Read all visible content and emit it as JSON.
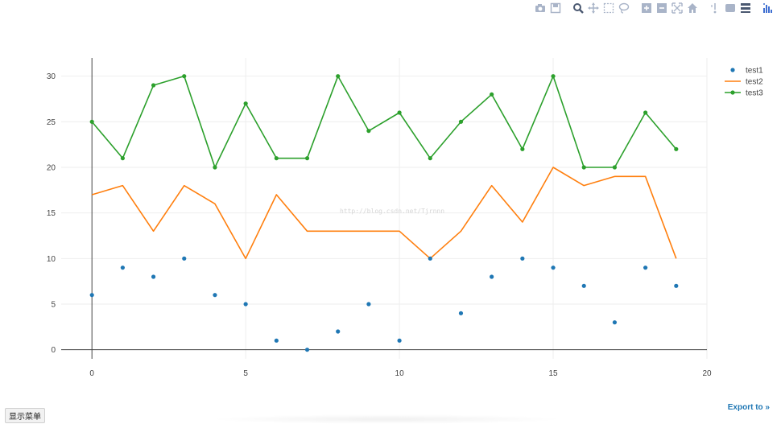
{
  "toolbar": {
    "buttons": [
      {
        "icon": "camera-icon"
      },
      {
        "icon": "save-icon"
      },
      {
        "icon": "zoom-icon"
      },
      {
        "icon": "pan-icon"
      },
      {
        "icon": "box-select-icon"
      },
      {
        "icon": "lasso-select-icon"
      },
      {
        "icon": "zoom-in-icon"
      },
      {
        "icon": "zoom-out-icon"
      },
      {
        "icon": "autoscale-icon"
      },
      {
        "icon": "reset-axes-icon"
      },
      {
        "icon": "spike-lines-icon"
      },
      {
        "icon": "hover-closest-icon"
      },
      {
        "icon": "hover-compare-icon"
      },
      {
        "icon": "plotly-logo-icon"
      }
    ]
  },
  "chart_data": {
    "type": "line",
    "xlim": [
      -1,
      20
    ],
    "ylim": [
      -1,
      32
    ],
    "x_ticks": [
      0,
      5,
      10,
      15,
      20
    ],
    "y_ticks": [
      0,
      5,
      10,
      15,
      20,
      25,
      30
    ],
    "grid": true,
    "legend_position": "top-right",
    "x": [
      0,
      1,
      2,
      3,
      4,
      5,
      6,
      7,
      8,
      9,
      10,
      11,
      12,
      13,
      14,
      15,
      16,
      17,
      18,
      19
    ],
    "series": [
      {
        "name": "test1",
        "mode": "markers",
        "color": "#1f77b4",
        "values": [
          6,
          9,
          8,
          10,
          6,
          5,
          1,
          0,
          2,
          5,
          1,
          10,
          4,
          8,
          10,
          9,
          7,
          3,
          9,
          7
        ]
      },
      {
        "name": "test2",
        "mode": "lines",
        "color": "#ff7f0e",
        "values": [
          17,
          18,
          13,
          18,
          16,
          10,
          17,
          13,
          13,
          13,
          13,
          10,
          13,
          18,
          14,
          20,
          18,
          19,
          19,
          10
        ]
      },
      {
        "name": "test3",
        "mode": "lines+markers",
        "color": "#2ca02c",
        "values": [
          25,
          21,
          29,
          30,
          20,
          27,
          21,
          21,
          30,
          24,
          26,
          21,
          25,
          28,
          22,
          30,
          20,
          20,
          26,
          22
        ]
      }
    ],
    "watermark": "http://blog.csdn.net/Tjrnnn"
  },
  "footer": {
    "menu_label": "显示菜单",
    "export_label": "Export to »"
  }
}
